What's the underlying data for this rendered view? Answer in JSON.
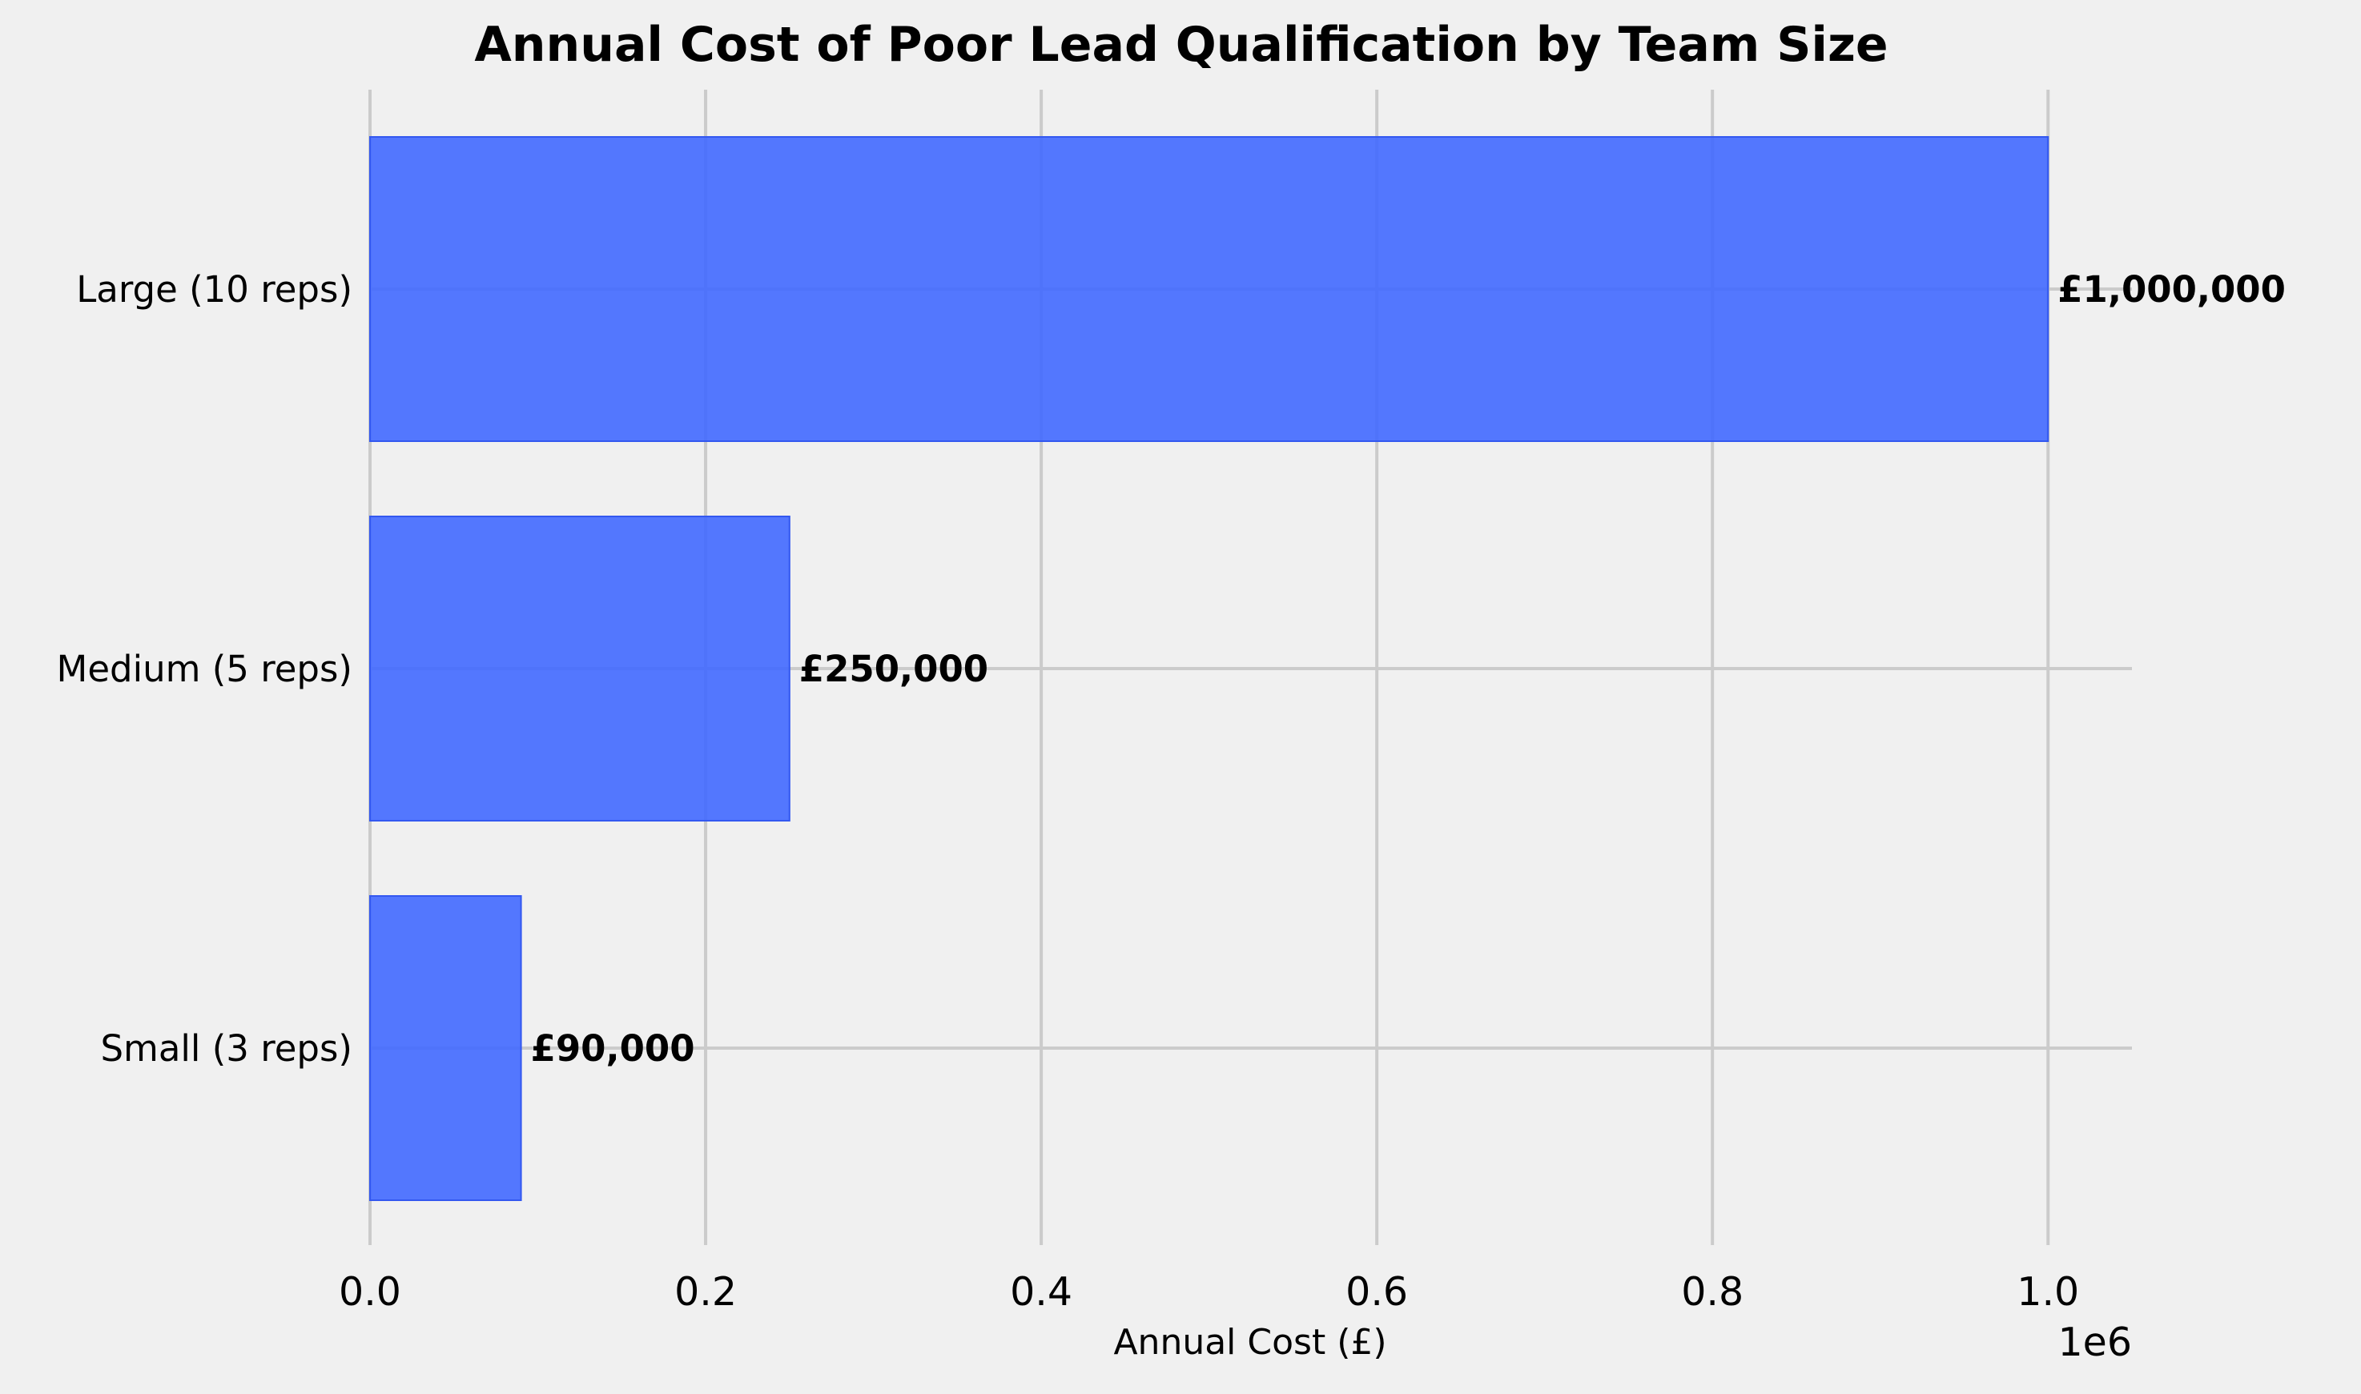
{
  "chart_data": {
    "type": "bar",
    "orientation": "horizontal",
    "title": "Annual Cost of Poor Lead Qualification by Team Size",
    "xlabel": "Annual Cost (£)",
    "ylabel": "",
    "categories": [
      "Small (3 reps)",
      "Medium (5 reps)",
      "Large (10 reps)"
    ],
    "values": [
      90000,
      250000,
      1000000
    ],
    "value_labels": [
      "£90,000",
      "£250,000",
      "£1,000,000"
    ],
    "xlim": [
      0,
      1050000
    ],
    "xticks": [
      0,
      200000,
      400000,
      600000,
      800000,
      1000000
    ],
    "xtick_labels": [
      "0.0",
      "0.2",
      "0.4",
      "0.6",
      "0.8",
      "1.0"
    ],
    "x_offset_label": "1e6",
    "grid": true,
    "bar_color": "#4169ff",
    "background_color": "#f0f0f0"
  }
}
